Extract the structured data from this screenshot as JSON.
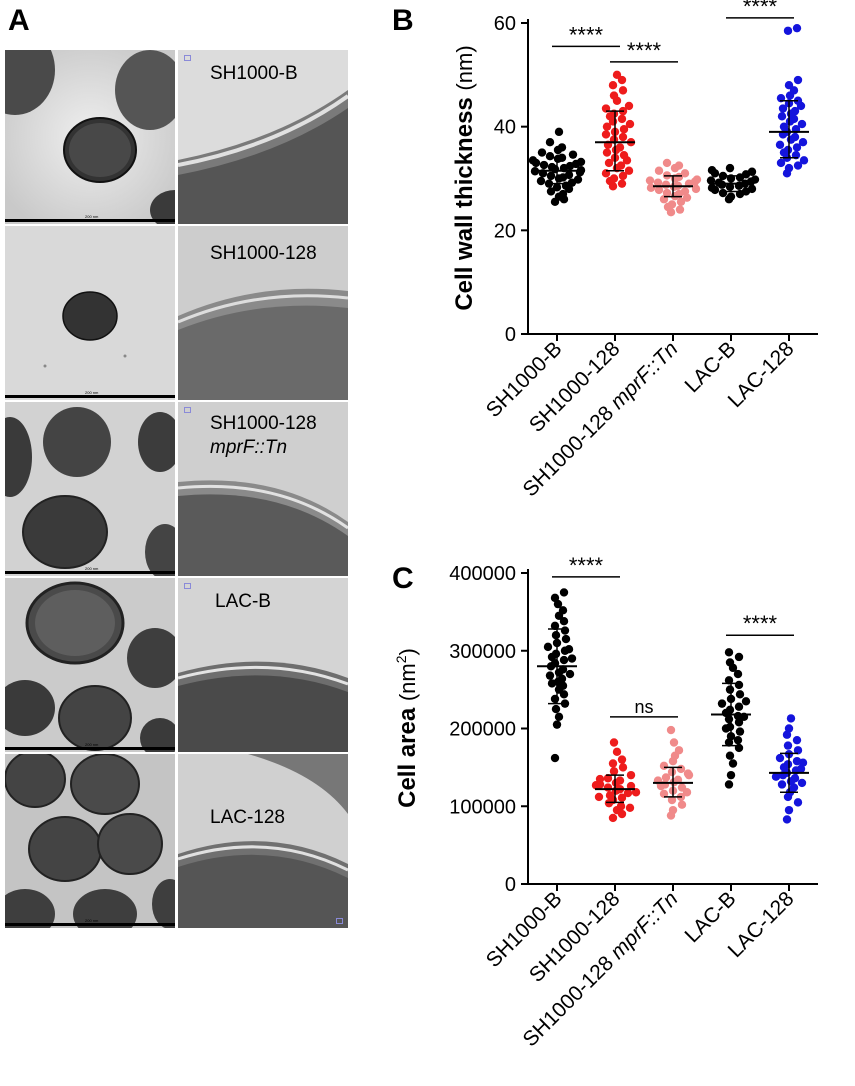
{
  "panel_a": {
    "letter": "A",
    "rows": [
      {
        "label": "SH1000-B",
        "label2": ""
      },
      {
        "label": "SH1000-128",
        "label2": ""
      },
      {
        "label": "SH1000-128",
        "label2": "mprF::Tn"
      },
      {
        "label": "LAC-B",
        "label2": ""
      },
      {
        "label": "LAC-128",
        "label2": ""
      }
    ],
    "scale_text": "200 nm"
  },
  "chart_data": [
    {
      "panel": "B",
      "type": "scatter",
      "title": "",
      "ylabel_bold": "Cell wall thickness",
      "ylabel_unit": "(nm)",
      "ylim": [
        0,
        60
      ],
      "yticks": [
        "0",
        "20",
        "40",
        "60"
      ],
      "categories": [
        "SH1000-B",
        "SH1000-128",
        "SH1000-128 mprF::Tn",
        "LAC-B",
        "LAC-128"
      ],
      "category_parts": [
        [
          "SH1000-B",
          ""
        ],
        [
          "SH1000-128",
          ""
        ],
        [
          "SH1000-128 ",
          "mprF::Tn"
        ],
        [
          "LAC-B",
          ""
        ],
        [
          "LAC-128",
          ""
        ]
      ],
      "series": [
        {
          "color": "#000000",
          "mean": 31.5,
          "sd_low": 29.0,
          "sd_high": 34.0,
          "values": [
            25.5,
            26,
            26.5,
            27,
            27.5,
            28,
            28.3,
            28.6,
            29,
            29.2,
            29.5,
            29.8,
            30,
            30.2,
            30.5,
            30.7,
            31,
            31.2,
            31.4,
            31.6,
            31.8,
            32,
            32.2,
            32.4,
            32.6,
            32.8,
            33,
            33.2,
            33.5,
            33.8,
            34,
            34.3,
            34.6,
            35,
            35.5,
            36,
            37,
            39
          ]
        },
        {
          "color": "#ee1c1c",
          "mean": 37,
          "sd_low": 31.5,
          "sd_high": 43,
          "values": [
            28.5,
            29,
            29.5,
            30,
            30.5,
            31,
            31.5,
            32,
            32.5,
            33,
            33.5,
            34,
            34.5,
            35,
            35.5,
            36,
            36.5,
            37,
            37.5,
            38,
            38.5,
            39,
            39.5,
            40,
            40.5,
            41,
            41.5,
            42,
            42.5,
            43,
            43.5,
            44,
            45,
            46,
            47,
            48,
            49,
            50
          ]
        },
        {
          "color": "#f08a8a",
          "mean": 28.5,
          "sd_low": 26.5,
          "sd_high": 30.5,
          "values": [
            23.5,
            24,
            24.5,
            25,
            25.5,
            26,
            26.3,
            26.6,
            27,
            27.2,
            27.5,
            27.8,
            28,
            28.2,
            28.4,
            28.6,
            28.8,
            29,
            29.2,
            29.4,
            29.6,
            29.8,
            30,
            30.3,
            30.6,
            31,
            31.5,
            32,
            32.5,
            33
          ]
        },
        {
          "color": "#000000",
          "mean": 29,
          "sd_low": 27.5,
          "sd_high": 30.5,
          "values": [
            26,
            26.5,
            27,
            27.2,
            27.5,
            27.8,
            28,
            28.2,
            28.4,
            28.6,
            28.8,
            29,
            29.2,
            29.4,
            29.6,
            29.8,
            30,
            30.2,
            30.5,
            30.8,
            31,
            31.3,
            31.6,
            32
          ]
        },
        {
          "color": "#1414dc",
          "mean": 39,
          "sd_low": 34,
          "sd_high": 45,
          "values": [
            31,
            32,
            32.5,
            33,
            33.5,
            34,
            34.5,
            35,
            35.5,
            36,
            36.5,
            37,
            37.5,
            38,
            38.5,
            39,
            39.5,
            40,
            40.5,
            41,
            41.5,
            42,
            42.5,
            43,
            43.5,
            44,
            44.5,
            45,
            45.5,
            46,
            47,
            48,
            49,
            58.5,
            59
          ]
        }
      ],
      "significance": [
        {
          "from": 0,
          "to": 1,
          "y": 55.5,
          "label": "****"
        },
        {
          "from": 1,
          "to": 2,
          "y": 52.5,
          "label": "****"
        },
        {
          "from": 3,
          "to": 4,
          "y": 61,
          "label": "****"
        }
      ]
    },
    {
      "panel": "C",
      "type": "scatter",
      "title": "",
      "ylabel_bold": "Cell area",
      "ylabel_unit": "(nm",
      "ylabel_sup": "2",
      "ylabel_close": ")",
      "ylim": [
        0,
        400000
      ],
      "yticks": [
        "0",
        "100000",
        "200000",
        "300000",
        "400000"
      ],
      "categories": [
        "SH1000-B",
        "SH1000-128",
        "SH1000-128 mprF::Tn",
        "LAC-B",
        "LAC-128"
      ],
      "category_parts": [
        [
          "SH1000-B",
          ""
        ],
        [
          "SH1000-128",
          ""
        ],
        [
          "SH1000-128 ",
          "mprF::Tn"
        ],
        [
          "LAC-B",
          ""
        ],
        [
          "LAC-128",
          ""
        ]
      ],
      "series": [
        {
          "color": "#000000",
          "mean": 280000,
          "sd_low": 232000,
          "sd_high": 328000,
          "values": [
            162000,
            205000,
            215000,
            225000,
            232000,
            238000,
            244000,
            250000,
            255000,
            260000,
            264000,
            268000,
            272000,
            276000,
            280000,
            284000,
            288000,
            292000,
            296000,
            300000,
            305000,
            310000,
            315000,
            320000,
            326000,
            332000,
            338000,
            345000,
            352000,
            360000,
            368000,
            375000,
            258000,
            270000,
            290000,
            302000
          ]
        },
        {
          "color": "#ee1c1c",
          "mean": 122000,
          "sd_low": 105000,
          "sd_high": 140000,
          "values": [
            85000,
            90000,
            95000,
            100000,
            104000,
            108000,
            111000,
            114000,
            117000,
            120000,
            122000,
            124000,
            126000,
            128000,
            130000,
            133000,
            136000,
            140000,
            145000,
            150000,
            155000,
            160000,
            170000,
            182000,
            98000,
            112000,
            118000,
            127000,
            135000
          ]
        },
        {
          "color": "#f08a8a",
          "mean": 130000,
          "sd_low": 112000,
          "sd_high": 150000,
          "values": [
            88000,
            95000,
            102000,
            108000,
            112000,
            116000,
            120000,
            124000,
            128000,
            131000,
            134000,
            137000,
            140000,
            144000,
            148000,
            152000,
            158000,
            165000,
            172000,
            182000,
            198000,
            118000,
            126000,
            133000,
            142000
          ]
        },
        {
          "color": "#000000",
          "mean": 218000,
          "sd_low": 178000,
          "sd_high": 258000,
          "values": [
            128000,
            140000,
            155000,
            165000,
            175000,
            182000,
            190000,
            196000,
            202000,
            208000,
            212000,
            216000,
            220000,
            224000,
            228000,
            232000,
            238000,
            244000,
            250000,
            256000,
            262000,
            270000,
            278000,
            285000,
            292000,
            298000,
            185000,
            200000,
            215000,
            235000
          ]
        },
        {
          "color": "#1414dc",
          "mean": 143000,
          "sd_low": 118000,
          "sd_high": 168000,
          "values": [
            83000,
            95000,
            105000,
            112000,
            118000,
            124000,
            128000,
            132000,
            136000,
            140000,
            143000,
            146000,
            150000,
            154000,
            158000,
            162000,
            167000,
            172000,
            178000,
            185000,
            192000,
            200000,
            213000,
            130000,
            138000,
            148000,
            156000
          ]
        }
      ],
      "significance": [
        {
          "from": 0,
          "to": 1,
          "y": 395000,
          "label": "****"
        },
        {
          "from": 1,
          "to": 2,
          "y": 215000,
          "label": "ns"
        },
        {
          "from": 3,
          "to": 4,
          "y": 320000,
          "label": "****"
        }
      ]
    }
  ]
}
